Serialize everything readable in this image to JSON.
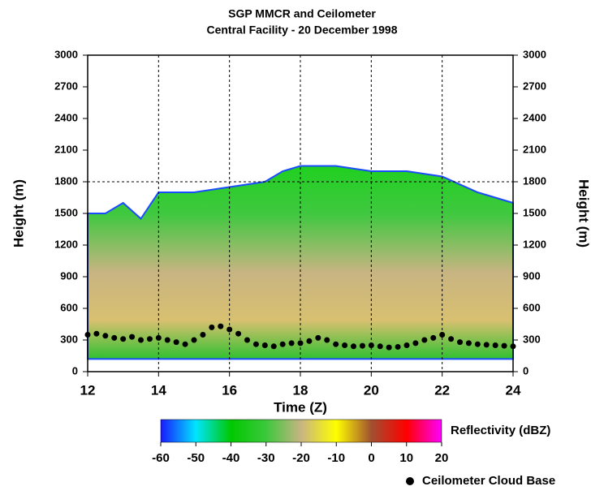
{
  "chart_data": {
    "type": "scatter",
    "title": "SGP MMCR and Ceilometer",
    "subtitle": "Central Facility - 20 December 1998",
    "xlabel": "Time (Z)",
    "ylabel": "Height (m)",
    "y2label": "Height (m)",
    "xlim": [
      12,
      24
    ],
    "xticks": [
      12,
      14,
      16,
      18,
      20,
      22,
      24
    ],
    "ylim": [
      0,
      3000
    ],
    "yticks": [
      0,
      300,
      600,
      900,
      1200,
      1500,
      1800,
      2100,
      2400,
      2700,
      3000
    ],
    "y2lim": [
      0,
      3000
    ],
    "y2ticks": [
      0,
      300,
      600,
      900,
      1200,
      1500,
      1800,
      2100,
      2400,
      2700,
      3000
    ],
    "grid_x": [
      14,
      16,
      18,
      20,
      22
    ],
    "grid_y": [
      1800
    ],
    "echo": {
      "x": [
        12,
        12.5,
        13,
        13.5,
        14,
        15,
        16,
        17,
        17.5,
        18,
        19,
        20,
        21,
        22,
        23,
        24
      ],
      "top": [
        1500,
        1500,
        1600,
        1450,
        1700,
        1700,
        1750,
        1800,
        1900,
        1950,
        1950,
        1900,
        1900,
        1850,
        1700,
        1600
      ],
      "base": [
        120,
        120,
        120,
        120,
        120,
        120,
        120,
        120,
        120,
        120,
        120,
        120,
        120,
        120,
        120,
        120
      ]
    },
    "series": [
      {
        "name": "Ceilometer Cloud Base",
        "color": "#000000",
        "x": [
          12,
          12.25,
          12.5,
          12.75,
          13,
          13.25,
          13.5,
          13.75,
          14,
          14.25,
          14.5,
          14.75,
          15,
          15.25,
          15.5,
          15.75,
          16,
          16.25,
          16.5,
          16.75,
          17,
          17.25,
          17.5,
          17.75,
          18,
          18.25,
          18.5,
          18.75,
          19,
          19.25,
          19.5,
          19.75,
          20,
          20.25,
          20.5,
          20.75,
          21,
          21.25,
          21.5,
          21.75,
          22,
          22.25,
          22.5,
          22.75,
          23,
          23.25,
          23.5,
          23.75,
          24
        ],
        "values": [
          350,
          360,
          340,
          320,
          310,
          330,
          300,
          310,
          320,
          300,
          280,
          260,
          300,
          350,
          420,
          430,
          400,
          360,
          300,
          260,
          250,
          240,
          260,
          270,
          270,
          290,
          320,
          300,
          260,
          250,
          240,
          245,
          250,
          240,
          230,
          235,
          250,
          270,
          300,
          320,
          350,
          310,
          280,
          270,
          260,
          255,
          250,
          245,
          240
        ]
      }
    ],
    "colorbar": {
      "label": "Reflectivity (dBZ)",
      "lim": [
        -60,
        20
      ],
      "ticks": [
        -60,
        -50,
        -40,
        -30,
        -20,
        -10,
        0,
        10,
        20
      ],
      "colors": [
        "#1a1aff",
        "#00e5ff",
        "#00c800",
        "#3cc83c",
        "#c8b482",
        "#ffff00",
        "#a05030",
        "#ff0000",
        "#ff00ff"
      ]
    }
  }
}
